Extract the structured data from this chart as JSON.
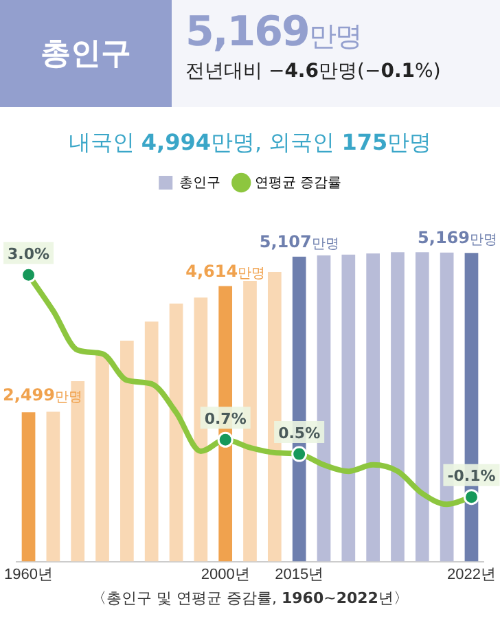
{
  "chart_data": {
    "type": "bar",
    "title": "총인구",
    "subtitle": "5,169만명",
    "annotations": [
      "전년대비 −4.6만명(−0.1%)",
      "내국인 4,994만명, 외국인 175만명",
      "〈총인구 및 연평균 증감률, 1960~2022년〉"
    ],
    "categories": [
      "1960년",
      null,
      null,
      null,
      null,
      null,
      null,
      null,
      "2000년",
      null,
      null,
      "2015년",
      null,
      null,
      null,
      null,
      null,
      null,
      "2022년"
    ],
    "series": [
      {
        "name": "총인구",
        "color": "#b8bcd8",
        "colors": [
          "#f0a24e",
          "#f9d8b4",
          "#f9d8b4",
          "#f9d8b4",
          "#f9d8b4",
          "#f9d8b4",
          "#f9d8b4",
          "#f9d8b4",
          "#f0a24e",
          "#f9d8b4",
          "#f9d8b4",
          "#6e7fae",
          "#b8bcd8",
          "#b8bcd8",
          "#b8bcd8",
          "#b8bcd8",
          "#b8bcd8",
          "#b8bcd8",
          "#6e7fae"
        ],
        "values": [
          2499,
          2510,
          3020,
          3470,
          3700,
          4020,
          4320,
          4420,
          4614,
          4700,
          4850,
          5107,
          5130,
          5140,
          5160,
          5180,
          5180,
          5175,
          5169
        ],
        "value_labels": [
          "2,499만명",
          null,
          null,
          null,
          null,
          null,
          null,
          null,
          "4,614만명",
          null,
          null,
          "5,107만명",
          null,
          null,
          null,
          null,
          null,
          null,
          "5,169만명"
        ]
      },
      {
        "name": "연평균 증감률",
        "type": "line",
        "axis": "y2",
        "marker": "none",
        "color": "#8dc63f",
        "values": [
          3.0,
          2.5,
          1.95,
          1.9,
          1.53,
          1.48,
          1.08,
          0.54,
          0.7,
          0.59,
          0.52,
          0.5,
          0.35,
          0.26,
          0.35,
          0.26,
          -0.05,
          -0.2,
          -0.1
        ]
      },
      {
        "type": "scatter",
        "axis": "y2",
        "marker": "circle",
        "color": "#16985a",
        "x": [
          "1960년",
          "2000년",
          "2015년",
          "2022년"
        ],
        "values": [
          3.0,
          0.7,
          0.5,
          -0.1
        ],
        "value_labels": [
          "3.0%",
          "0.7%",
          "0.5%",
          "-0.1%"
        ]
      }
    ],
    "tick_labels": "x",
    "legend": "top",
    "grid": false
  }
}
